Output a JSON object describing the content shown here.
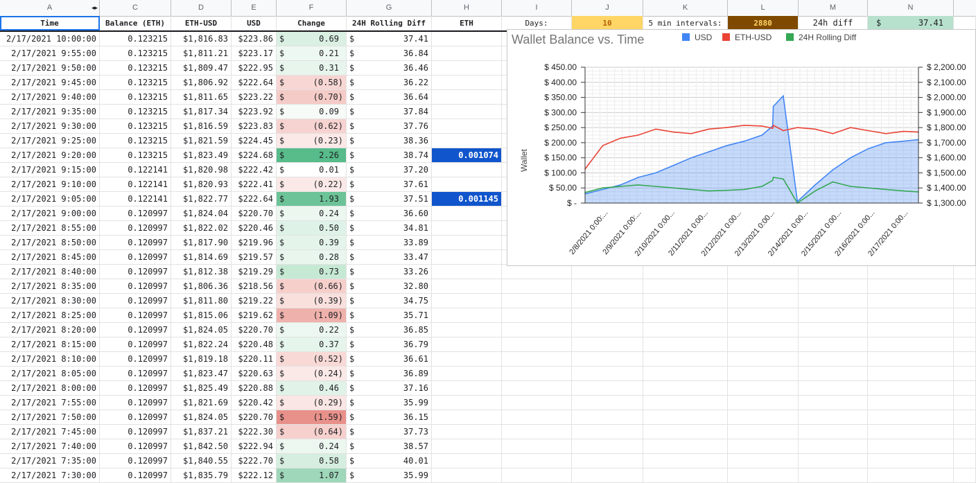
{
  "col_letters": [
    "A",
    "",
    "C",
    "D",
    "E",
    "F",
    "G",
    "H",
    "I",
    "J",
    "K",
    "L",
    "M",
    "N"
  ],
  "headers": {
    "time": "Time",
    "balance": "Balance (ETH)",
    "eth_usd": "ETH-USD",
    "usd": "USD",
    "change": "Change",
    "rolling": "24H Rolling Diff",
    "eth": "ETH"
  },
  "summary": {
    "days_label": "Days:",
    "days_value": "10",
    "intervals_label": "5 min intervals:",
    "intervals_value": "2880",
    "diff_label": "24h diff",
    "diff_currency": "$",
    "diff_value": "37.41"
  },
  "rows": [
    {
      "time": "2/17/2021 10:00:00",
      "bal": "0.123215",
      "ethusd": "$1,816.83",
      "usd": "$223.86",
      "chg": "0.69",
      "roll": "37.41",
      "eth": "",
      "shade": "#d9f0e3"
    },
    {
      "time": "2/17/2021 9:55:00",
      "bal": "0.123215",
      "ethusd": "$1,811.21",
      "usd": "$223.17",
      "chg": "0.21",
      "roll": "36.84",
      "eth": "",
      "shade": "#eef8f2"
    },
    {
      "time": "2/17/2021 9:50:00",
      "bal": "0.123215",
      "ethusd": "$1,809.47",
      "usd": "$222.95",
      "chg": "0.31",
      "roll": "36.46",
      "eth": "",
      "shade": "#e8f5ec"
    },
    {
      "time": "2/17/2021 9:45:00",
      "bal": "0.123215",
      "ethusd": "$1,806.92",
      "usd": "$222.64",
      "chg": "(0.58)",
      "roll": "36.22",
      "eth": "",
      "shade": "#f7d6d3"
    },
    {
      "time": "2/17/2021 9:40:00",
      "bal": "0.123215",
      "ethusd": "$1,811.65",
      "usd": "$223.22",
      "chg": "(0.70)",
      "roll": "36.64",
      "eth": "",
      "shade": "#f5cbc7"
    },
    {
      "time": "2/17/2021 9:35:00",
      "bal": "0.123215",
      "ethusd": "$1,817.34",
      "usd": "$223.92",
      "chg": "0.09",
      "roll": "37.84",
      "eth": "",
      "shade": "#f6fbf8"
    },
    {
      "time": "2/17/2021 9:30:00",
      "bal": "0.123215",
      "ethusd": "$1,816.59",
      "usd": "$223.83",
      "chg": "(0.62)",
      "roll": "37.76",
      "eth": "",
      "shade": "#f6d3d0"
    },
    {
      "time": "2/17/2021 9:25:00",
      "bal": "0.123215",
      "ethusd": "$1,821.59",
      "usd": "$224.45",
      "chg": "(0.23)",
      "roll": "38.36",
      "eth": "",
      "shade": "#fbe9e7"
    },
    {
      "time": "2/17/2021 9:20:00",
      "bal": "0.123215",
      "ethusd": "$1,823.49",
      "usd": "$224.68",
      "chg": "2.26",
      "roll": "38.74",
      "eth": "0.001074",
      "shade": "#57bb8a"
    },
    {
      "time": "2/17/2021 9:15:00",
      "bal": "0.122141",
      "ethusd": "$1,820.98",
      "usd": "$222.42",
      "chg": "0.01",
      "roll": "37.20",
      "eth": "",
      "shade": "#ffffff"
    },
    {
      "time": "2/17/2021 9:10:00",
      "bal": "0.122141",
      "ethusd": "$1,820.93",
      "usd": "$222.41",
      "chg": "(0.22)",
      "roll": "37.61",
      "eth": "",
      "shade": "#fbe9e7"
    },
    {
      "time": "2/17/2021 9:05:00",
      "bal": "0.122141",
      "ethusd": "$1,822.77",
      "usd": "$222.64",
      "chg": "1.93",
      "roll": "37.51",
      "eth": "0.001145",
      "shade": "#6cc397"
    },
    {
      "time": "2/17/2021 9:00:00",
      "bal": "0.120997",
      "ethusd": "$1,824.04",
      "usd": "$220.70",
      "chg": "0.24",
      "roll": "36.60",
      "eth": "",
      "shade": "#ecf7f0"
    },
    {
      "time": "2/17/2021 8:55:00",
      "bal": "0.120997",
      "ethusd": "$1,822.02",
      "usd": "$220.46",
      "chg": "0.50",
      "roll": "34.81",
      "eth": "",
      "shade": "#dff2e7"
    },
    {
      "time": "2/17/2021 8:50:00",
      "bal": "0.120997",
      "ethusd": "$1,817.90",
      "usd": "$219.96",
      "chg": "0.39",
      "roll": "33.89",
      "eth": "",
      "shade": "#e4f4ea"
    },
    {
      "time": "2/17/2021 8:45:00",
      "bal": "0.120997",
      "ethusd": "$1,814.69",
      "usd": "$219.57",
      "chg": "0.28",
      "roll": "33.47",
      "eth": "",
      "shade": "#e9f6ee"
    },
    {
      "time": "2/17/2021 8:40:00",
      "bal": "0.120997",
      "ethusd": "$1,812.38",
      "usd": "$219.29",
      "chg": "0.73",
      "roll": "33.26",
      "eth": "",
      "shade": "#c6e9d4"
    },
    {
      "time": "2/17/2021 8:35:00",
      "bal": "0.120997",
      "ethusd": "$1,806.36",
      "usd": "$218.56",
      "chg": "(0.66)",
      "roll": "32.80",
      "eth": "",
      "shade": "#f6cfcb"
    },
    {
      "time": "2/17/2021 8:30:00",
      "bal": "0.120997",
      "ethusd": "$1,811.80",
      "usd": "$219.22",
      "chg": "(0.39)",
      "roll": "34.75",
      "eth": "",
      "shade": "#f9e0dd"
    },
    {
      "time": "2/17/2021 8:25:00",
      "bal": "0.120997",
      "ethusd": "$1,815.06",
      "usd": "$219.62",
      "chg": "(1.09)",
      "roll": "35.71",
      "eth": "",
      "shade": "#efb1ab"
    },
    {
      "time": "2/17/2021 8:20:00",
      "bal": "0.120997",
      "ethusd": "$1,824.05",
      "usd": "$220.70",
      "chg": "0.22",
      "roll": "36.85",
      "eth": "",
      "shade": "#edf7f1"
    },
    {
      "time": "2/17/2021 8:15:00",
      "bal": "0.120997",
      "ethusd": "$1,822.24",
      "usd": "$220.48",
      "chg": "0.37",
      "roll": "36.79",
      "eth": "",
      "shade": "#e5f5eb"
    },
    {
      "time": "2/17/2021 8:10:00",
      "bal": "0.120997",
      "ethusd": "$1,819.18",
      "usd": "$220.11",
      "chg": "(0.52)",
      "roll": "36.61",
      "eth": "",
      "shade": "#f8d9d6"
    },
    {
      "time": "2/17/2021 8:05:00",
      "bal": "0.120997",
      "ethusd": "$1,823.47",
      "usd": "$220.63",
      "chg": "(0.24)",
      "roll": "36.89",
      "eth": "",
      "shade": "#fbe9e7"
    },
    {
      "time": "2/17/2021 8:00:00",
      "bal": "0.120997",
      "ethusd": "$1,825.49",
      "usd": "$220.88",
      "chg": "0.46",
      "roll": "37.16",
      "eth": "",
      "shade": "#e1f3e8"
    },
    {
      "time": "2/17/2021 7:55:00",
      "bal": "0.120997",
      "ethusd": "$1,821.69",
      "usd": "$220.42",
      "chg": "(0.29)",
      "roll": "35.99",
      "eth": "",
      "shade": "#fae6e4"
    },
    {
      "time": "2/17/2021 7:50:00",
      "bal": "0.120997",
      "ethusd": "$1,824.05",
      "usd": "$220.70",
      "chg": "(1.59)",
      "roll": "36.15",
      "eth": "",
      "shade": "#e8918a"
    },
    {
      "time": "2/17/2021 7:45:00",
      "bal": "0.120997",
      "ethusd": "$1,837.21",
      "usd": "$222.30",
      "chg": "(0.64)",
      "roll": "37.73",
      "eth": "",
      "shade": "#f6d0cd"
    },
    {
      "time": "2/17/2021 7:40:00",
      "bal": "0.120997",
      "ethusd": "$1,842.50",
      "usd": "$222.94",
      "chg": "0.24",
      "roll": "38.57",
      "eth": "",
      "shade": "#ecf7f0"
    },
    {
      "time": "2/17/2021 7:35:00",
      "bal": "0.120997",
      "ethusd": "$1,840.55",
      "usd": "$222.70",
      "chg": "0.58",
      "roll": "40.01",
      "eth": "",
      "shade": "#d6eee0"
    },
    {
      "time": "2/17/2021 7:30:00",
      "bal": "0.120997",
      "ethusd": "$1,835.79",
      "usd": "$222.12",
      "chg": "1.07",
      "roll": "35.99",
      "eth": "",
      "shade": "#9ed7b9"
    }
  ],
  "chart_data": {
    "type": "line",
    "title": "Wallet Balance vs. Time",
    "ylabel": "Wallet",
    "ylim": [
      0,
      450
    ],
    "y2lim": [
      1300,
      2200
    ],
    "left_ticks": [
      "$ -",
      "$ 50.00",
      "$ 100.00",
      "$ 150.00",
      "$ 200.00",
      "$ 250.00",
      "$ 300.00",
      "$ 350.00",
      "$ 400.00",
      "$ 450.00"
    ],
    "right_ticks": [
      "$ 1,300.00",
      "$ 1,400.00",
      "$ 1,500.00",
      "$ 1,600.00",
      "$ 1,700.00",
      "$ 1,800.00",
      "$ 1,900.00",
      "$ 2,000.00",
      "$ 2,100.00",
      "$ 2,200.00"
    ],
    "x_labels": [
      "2/8/2021 0:00:...",
      "2/9/2021 0:00:...",
      "2/10/2021 0:00...",
      "2/11/2021 0:00...",
      "2/12/2021 0:00...",
      "2/13/2021 0:00...",
      "2/14/2021 0:00...",
      "2/15/2021 0:00...",
      "2/16/2021 0:00...",
      "2/17/2021 0:00..."
    ],
    "x": [
      0,
      0.5,
      1,
      1.5,
      2,
      2.5,
      3,
      3.5,
      4,
      4.5,
      5,
      5.3,
      5.32,
      5.6,
      6,
      6.5,
      7,
      7.5,
      8,
      8.5,
      9,
      9.42
    ],
    "series": [
      {
        "name": "USD",
        "color": "#4285f4",
        "axis": "left",
        "fill": true,
        "values": [
          30,
          45,
          60,
          85,
          100,
          125,
          150,
          170,
          190,
          205,
          225,
          255,
          320,
          355,
          5,
          60,
          110,
          150,
          180,
          200,
          205,
          210
        ]
      },
      {
        "name": "ETH-USD",
        "color": "#ea4335",
        "axis": "right",
        "values": [
          1525,
          1680,
          1730,
          1750,
          1790,
          1770,
          1760,
          1790,
          1800,
          1815,
          1810,
          1795,
          1815,
          1780,
          1800,
          1790,
          1760,
          1800,
          1780,
          1760,
          1775,
          1770
        ]
      },
      {
        "name": "24H Rolling Diff",
        "color": "#34a853",
        "axis": "left",
        "values": [
          35,
          50,
          55,
          60,
          55,
          50,
          45,
          40,
          42,
          45,
          55,
          75,
          85,
          80,
          0,
          40,
          70,
          55,
          50,
          45,
          40,
          37
        ]
      }
    ]
  }
}
